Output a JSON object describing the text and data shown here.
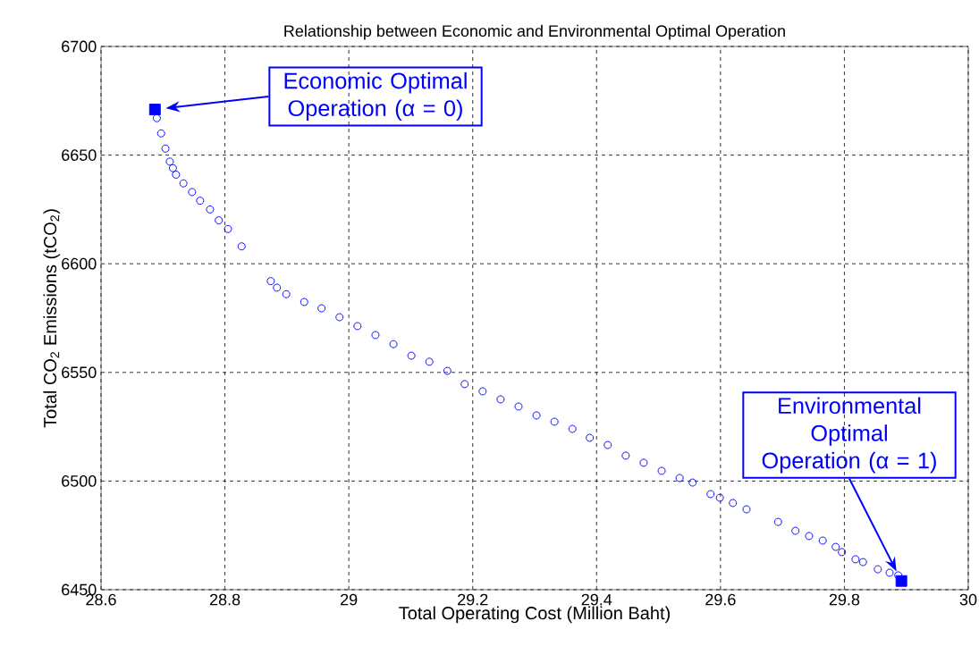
{
  "chart_data": {
    "type": "scatter",
    "title": "Relationship between Economic and Environmental Optimal Operation",
    "xlabel": "Total Operating Cost (Million Baht)",
    "ylabel": "Total CO$_{2}$ Emissions (tCO$_{2}$)",
    "xlim": [
      28.6,
      30
    ],
    "ylim": [
      6450,
      6700
    ],
    "xticks": [
      28.6,
      28.8,
      29,
      29.2,
      29.4,
      29.6,
      29.8,
      30
    ],
    "yticks": [
      6450,
      6500,
      6550,
      6600,
      6650,
      6700
    ],
    "grid": true,
    "series": [
      {
        "color": "#0000ff",
        "marker": "circle",
        "x": [
          28.69,
          28.697,
          28.704,
          28.711,
          28.716,
          28.721,
          28.733,
          28.747,
          28.76,
          28.776,
          28.79,
          28.805,
          28.827,
          28.874,
          28.884,
          28.899,
          28.928,
          28.956,
          28.985,
          29.014,
          29.043,
          29.072,
          29.101,
          29.13,
          29.159,
          29.187,
          29.216,
          29.245,
          29.274,
          29.303,
          29.332,
          29.361,
          29.389,
          29.418,
          29.447,
          29.476,
          29.505,
          29.534,
          29.555,
          29.584,
          29.599,
          29.62,
          29.642,
          29.693,
          29.721,
          29.743,
          29.765,
          29.786,
          29.796,
          29.818,
          29.83,
          29.854,
          29.873,
          29.887
        ],
        "values": [
          6667,
          6660,
          6653,
          6647,
          6644,
          6641,
          6637,
          6633,
          6629,
          6625,
          6620,
          6616,
          6608,
          6592,
          6589,
          6586,
          6582.4,
          6579.5,
          6575.4,
          6571.3,
          6567.2,
          6563,
          6557.7,
          6554.9,
          6550.7,
          6544.6,
          6541.3,
          6537.6,
          6534.3,
          6530.2,
          6527.3,
          6524,
          6519.9,
          6516.6,
          6511.7,
          6508.4,
          6504.7,
          6501.4,
          6499.3,
          6494,
          6492.3,
          6489.9,
          6487,
          6481.2,
          6477.1,
          6474.7,
          6472.6,
          6469.7,
          6467.3,
          6464,
          6462.7,
          6459.4,
          6457.8,
          6456.6
        ]
      },
      {
        "color": "#0000ff",
        "marker": "square",
        "x": [
          28.687,
          29.892
        ],
        "values": [
          6671,
          6454
        ]
      }
    ],
    "annotations": [
      "Economic Optimal Operation (α = 0)",
      "Environmental Optimal Operation (α = 1)"
    ]
  }
}
